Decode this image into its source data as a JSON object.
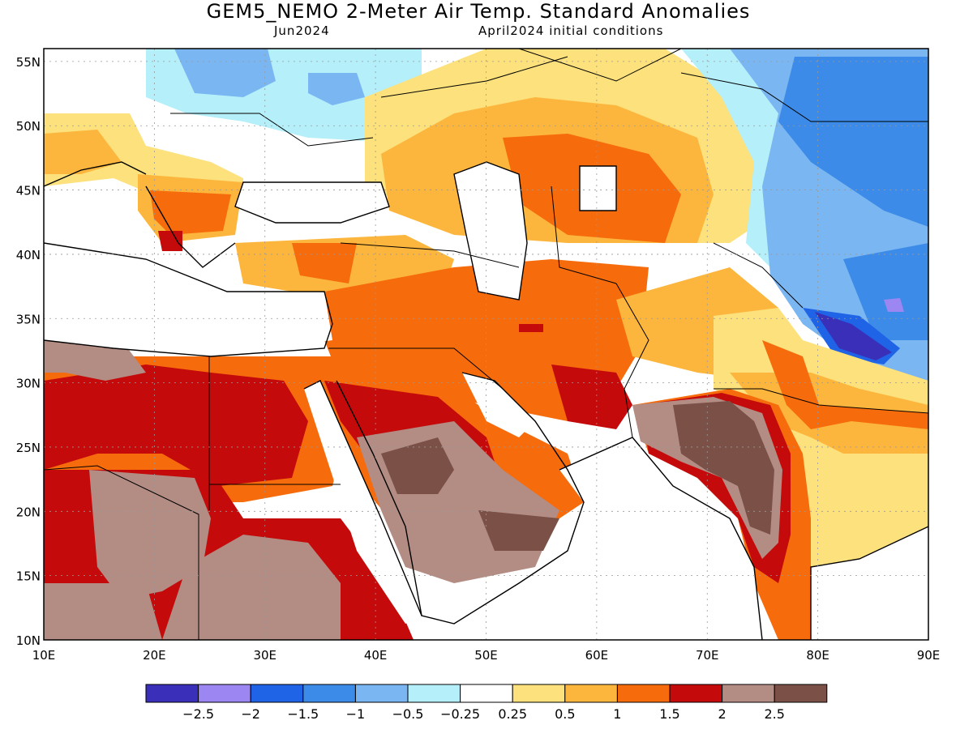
{
  "title": "GEM5_NEMO 2-Meter Air Temp. Standard Anomalies",
  "subtitle_left": "Jun2024",
  "subtitle_right": "April2024 initial conditions",
  "map": {
    "lat_labels": [
      "55N",
      "50N",
      "45N",
      "40N",
      "35N",
      "30N",
      "25N",
      "20N",
      "15N",
      "10N"
    ],
    "lon_labels": [
      "10E",
      "20E",
      "30E",
      "40E",
      "50E",
      "60E",
      "70E",
      "80E",
      "90E"
    ],
    "lat_range": [
      10,
      56
    ],
    "lon_range": [
      10,
      90
    ]
  },
  "legend": {
    "colors": [
      "#3a2fb8",
      "#9b86f2",
      "#1f63e6",
      "#3d8be8",
      "#79b6f2",
      "#b4effa",
      "#ffffff",
      "#fce17c",
      "#fdb63d",
      "#f66b0c",
      "#c40a0a",
      "#b38c83",
      "#7a5047"
    ],
    "labels": [
      "-2.5",
      "-2",
      "-1.5",
      "-1",
      "-0.5",
      "-0.25",
      "0.25",
      "0.5",
      "1",
      "1.5",
      "2",
      "2.5"
    ]
  }
}
